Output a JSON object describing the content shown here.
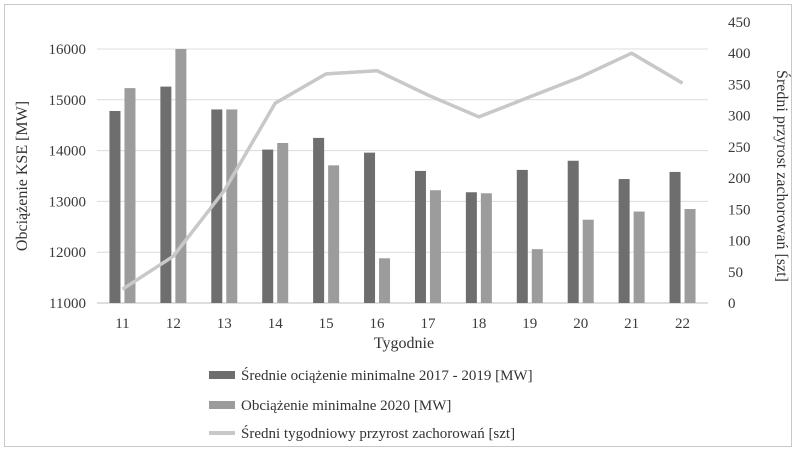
{
  "chart_data": {
    "type": "bar+line",
    "categories": [
      "11",
      "12",
      "13",
      "14",
      "15",
      "16",
      "17",
      "18",
      "19",
      "20",
      "21",
      "22"
    ],
    "series": [
      {
        "name": "Średnie ociążenie minimalne 2017 - 2019 [MW]",
        "kind": "bar",
        "axis": "left",
        "color": "#6e6e6e",
        "values": [
          14780,
          15260,
          14810,
          14020,
          14250,
          13960,
          13600,
          13180,
          13620,
          13800,
          13440,
          13580
        ]
      },
      {
        "name": "Obciążenie minimalne 2020 [MW]",
        "kind": "bar",
        "axis": "left",
        "color": "#9c9c9c",
        "values": [
          15230,
          16000,
          14810,
          14150,
          13710,
          11880,
          13220,
          13160,
          12060,
          12640,
          12800,
          12850
        ]
      },
      {
        "name": "Średni tygodniowy przyrost zachorowań [szt]",
        "kind": "line",
        "axis": "right",
        "color": "#c8c8c8",
        "values": [
          22,
          75,
          180,
          320,
          367,
          372,
          333,
          298,
          330,
          362,
          400,
          352
        ]
      }
    ],
    "title": "",
    "xlabel": "Tygodnie",
    "ylabel": "Obciążenie KSE [MW]",
    "y2label": "Średni przyrost zachorowań [szt]",
    "ylim": [
      11000,
      16000
    ],
    "yticks": [
      "11000",
      "12000",
      "13000",
      "14000",
      "15000",
      "16000"
    ],
    "y2lim": [
      0,
      450
    ],
    "y2ticks": [
      "0",
      "50",
      "100",
      "150",
      "200",
      "250",
      "300",
      "350",
      "400",
      "450"
    ],
    "grid": true,
    "legend_position": "bottom"
  }
}
